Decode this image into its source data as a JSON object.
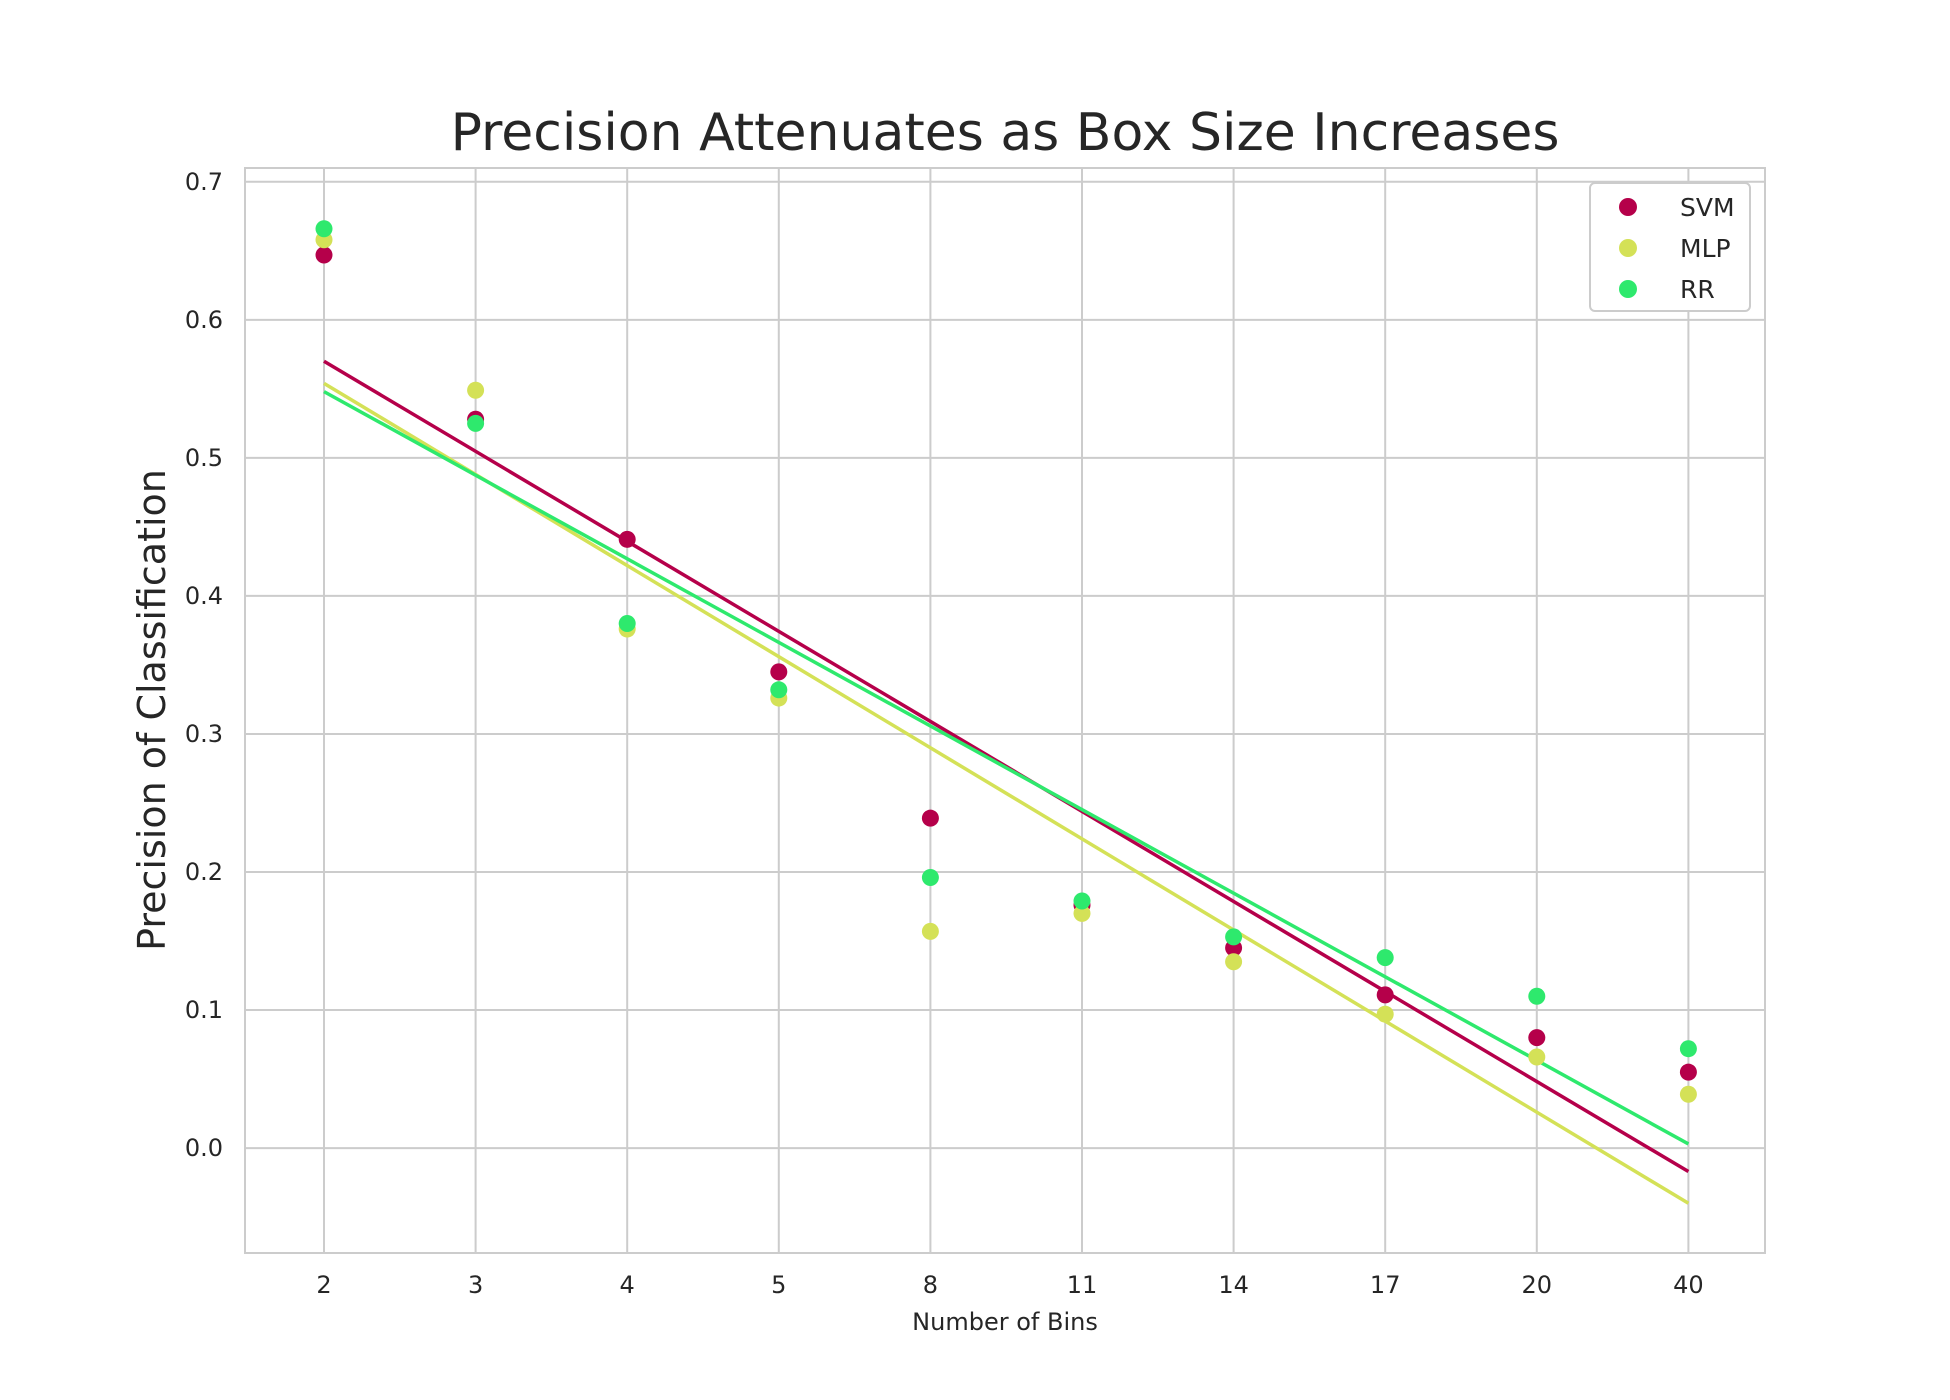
{
  "chart_data": {
    "type": "scatter",
    "title": "Precision Attenuates as Box Size Increases",
    "xlabel": "Number of Bins",
    "ylabel": "Precision of Classification",
    "categories": [
      "2",
      "3",
      "4",
      "5",
      "8",
      "11",
      "14",
      "17",
      "20",
      "40"
    ],
    "ylim": [
      -0.076,
      0.71
    ],
    "yticks": [
      0.0,
      0.1,
      0.2,
      0.3,
      0.4,
      0.5,
      0.6,
      0.7
    ],
    "ytick_labels": [
      "0.0",
      "0.1",
      "0.2",
      "0.3",
      "0.4",
      "0.5",
      "0.6",
      "0.7"
    ],
    "grid": true,
    "legend_position": "top-right",
    "series": [
      {
        "name": "SVM",
        "color": "#b5004a",
        "values": [
          0.647,
          0.528,
          0.441,
          0.345,
          0.239,
          0.176,
          0.145,
          0.111,
          0.08,
          0.055
        ],
        "trend": [
          0.57,
          -0.017
        ]
      },
      {
        "name": "MLP",
        "color": "#d4e157",
        "values": [
          0.658,
          0.549,
          0.376,
          0.326,
          0.157,
          0.17,
          0.135,
          0.097,
          0.066,
          0.039
        ],
        "trend": [
          0.554,
          -0.04
        ]
      },
      {
        "name": "RR",
        "color": "#2ee96d",
        "values": [
          0.666,
          0.525,
          0.38,
          0.332,
          0.196,
          0.179,
          0.153,
          0.138,
          0.11,
          0.072
        ],
        "trend": [
          0.548,
          0.003
        ]
      }
    ]
  }
}
